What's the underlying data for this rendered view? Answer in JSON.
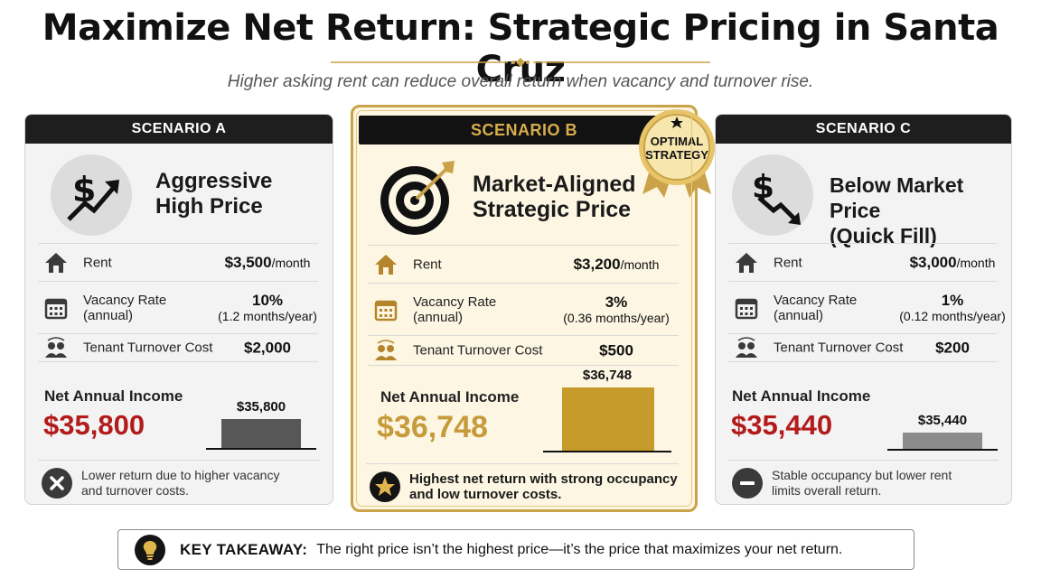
{
  "title": "Maximize Net Return: Strategic Pricing in Santa Cruz",
  "subtitle": "Higher asking rent can reduce overall return when vacancy and turnover rise.",
  "colors": {
    "accent_gold": "#c9a24a",
    "negative_red": "#b31b1b",
    "dark": "#1e1e1e"
  },
  "scenarios": [
    {
      "header": "SCENARIO A",
      "title_line1": "Aggressive",
      "title_line2": "High Price",
      "icon": "dollar-trend-up-icon",
      "rent_label": "Rent",
      "rent_value": "$3,500",
      "rent_unit": "/month",
      "vacancy_label": "Vacancy Rate",
      "vacancy_label_sub": "(annual)",
      "vacancy_value": "10%",
      "vacancy_sub": "(1.2 months/year)",
      "turnover_label": "Tenant Turnover Cost",
      "turnover_value": "$2,000",
      "income_label": "Net Annual Income",
      "income_value": "$35,800",
      "bar_label": "$35,800",
      "bar_value": 35800,
      "note_icon": "x-circle-icon",
      "note_line1": "Lower return due to higher vacancy",
      "note_line2": "and turnover costs."
    },
    {
      "header": "SCENARIO B",
      "title_line1": "Market-Aligned",
      "title_line2": "Strategic Price",
      "icon": "target-arrow-icon",
      "badge_line1": "OPTIMAL",
      "badge_line2": "STRATEGY",
      "rent_label": "Rent",
      "rent_value": "$3,200",
      "rent_unit": "/month",
      "vacancy_label": "Vacancy Rate",
      "vacancy_label_sub": "(annual)",
      "vacancy_value": "3%",
      "vacancy_sub": "(0.36 months/year)",
      "turnover_label": "Tenant Turnover Cost",
      "turnover_value": "$500",
      "income_label": "Net Annual Income",
      "income_value": "$36,748",
      "bar_label": "$36,748",
      "bar_value": 36748,
      "note_icon": "star-circle-icon",
      "note_line1": "Highest net return with strong occupancy",
      "note_line2": "and low turnover costs."
    },
    {
      "header": "SCENARIO C",
      "title_line1": "Below Market Price",
      "title_line2": "(Quick Fill)",
      "icon": "dollar-trend-down-icon",
      "rent_label": "Rent",
      "rent_value": "$3,000",
      "rent_unit": "/month",
      "vacancy_label": "Vacancy Rate",
      "vacancy_label_sub": "(annual)",
      "vacancy_value": "1%",
      "vacancy_sub": "(0.12 months/year)",
      "turnover_label": "Tenant Turnover Cost",
      "turnover_value": "$200",
      "income_label": "Net Annual Income",
      "income_value": "$35,440",
      "bar_label": "$35,440",
      "bar_value": 35440,
      "note_icon": "minus-circle-icon",
      "note_line1": "Stable occupancy but lower rent",
      "note_line2": "limits overall return."
    }
  ],
  "takeaway": {
    "icon": "lightbulb-icon",
    "heading": "KEY TAKEAWAY:",
    "text": "The right price isn’t the highest price—it’s the price that maximizes your net return."
  }
}
